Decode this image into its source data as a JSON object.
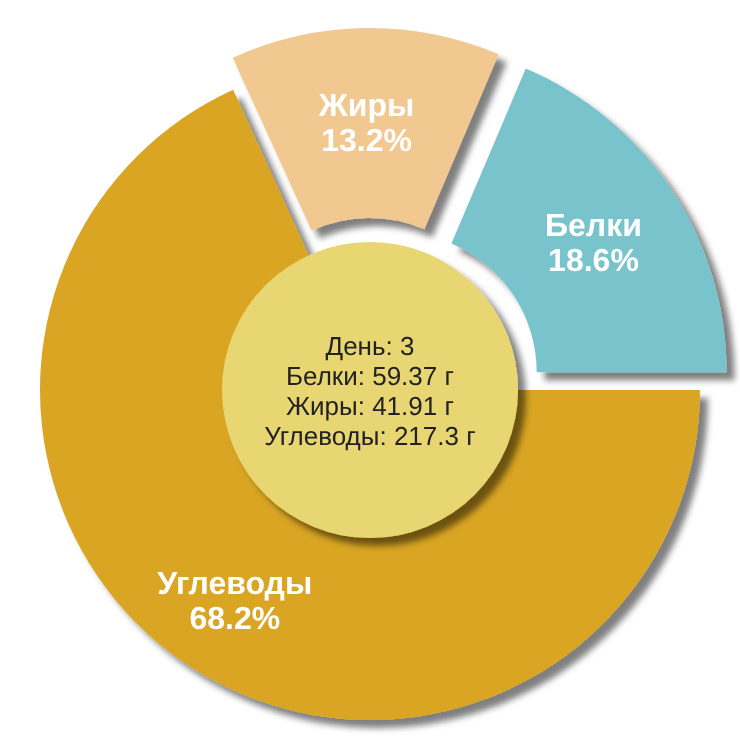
{
  "chart_data": {
    "type": "donut",
    "categories": [
      "Жиры",
      "Белки",
      "Углеводы"
    ],
    "values": [
      13.2,
      18.6,
      68.2
    ],
    "colors": [
      "#f0c890",
      "#79c4cc",
      "#d9a521"
    ],
    "value_labels": [
      "13.2%",
      "18.6%",
      "68.2%"
    ],
    "annotations": [
      "День: 3",
      "Белки: 59.37 г",
      "Жиры: 41.91 г",
      "Углеводы: 217.3 г"
    ]
  }
}
